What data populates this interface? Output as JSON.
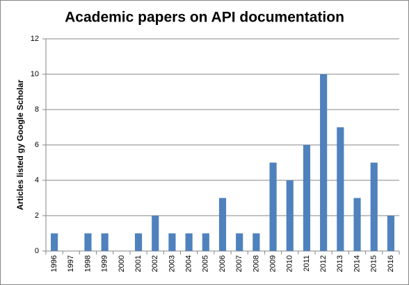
{
  "chart_data": {
    "type": "bar",
    "title": "Academic papers on API documentation",
    "y_label": "Articles listed gy Google Scholar",
    "categories": [
      "1996",
      "1997",
      "1998",
      "1999",
      "2000",
      "2001",
      "2002",
      "2003",
      "2004",
      "2005",
      "2006",
      "2007",
      "2008",
      "2009",
      "2010",
      "2011",
      "2012",
      "2013",
      "2014",
      "2015",
      "2016"
    ],
    "values": [
      1,
      0,
      1,
      1,
      0,
      1,
      2,
      1,
      1,
      1,
      3,
      1,
      1,
      5,
      4,
      6,
      10,
      7,
      3,
      5,
      2
    ],
    "color": "#4f81bd",
    "ylim": [
      0,
      12
    ],
    "yticks": [
      0,
      2,
      4,
      6,
      8,
      10,
      12
    ],
    "grid": true
  }
}
